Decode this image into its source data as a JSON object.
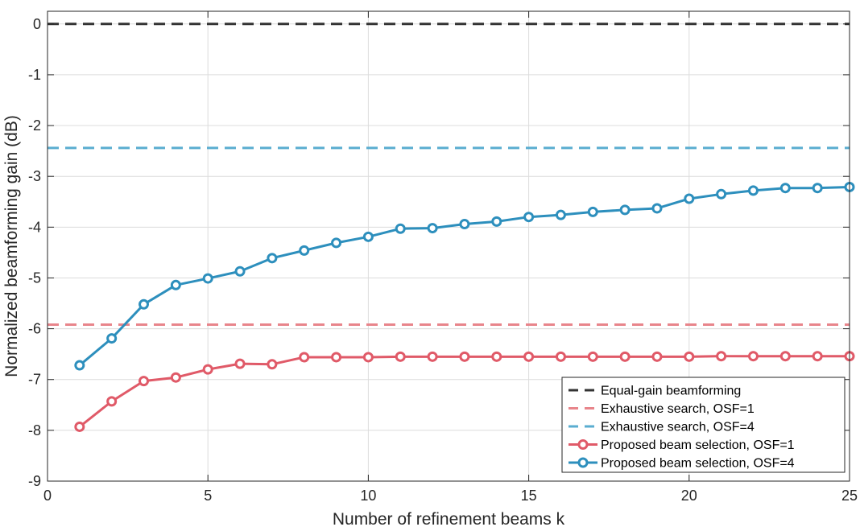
{
  "chart_data": {
    "type": "line",
    "xlabel": "Number of refinement beams k",
    "ylabel": "Normalized beamforming gain (dB)",
    "xlim": [
      0,
      25
    ],
    "ylim": [
      -9,
      0.25
    ],
    "xticks": [
      0,
      5,
      10,
      15,
      20,
      25
    ],
    "yticks": [
      0,
      -1,
      -2,
      -3,
      -4,
      -5,
      -6,
      -7,
      -8,
      -9
    ],
    "grid": true,
    "legend_position": "bottom-right",
    "reference_lines": [
      {
        "name": "Equal-gain beamforming",
        "y": 0,
        "color": "#333333",
        "style": "dashed"
      },
      {
        "name": "Exhaustive search, OSF=1",
        "y": -5.92,
        "color": "#e8858b",
        "style": "dashed"
      },
      {
        "name": "Exhaustive search, OSF=4",
        "y": -2.44,
        "color": "#5aadd0",
        "style": "dashed"
      }
    ],
    "series": [
      {
        "name": "Proposed beam selection, OSF=1",
        "color": "#e05a68",
        "marker": "circle",
        "x": [
          1,
          2,
          3,
          4,
          5,
          6,
          7,
          8,
          9,
          10,
          11,
          12,
          13,
          14,
          15,
          16,
          17,
          18,
          19,
          20,
          21,
          22,
          23,
          24,
          25
        ],
        "y": [
          -7.93,
          -7.43,
          -7.03,
          -6.96,
          -6.8,
          -6.69,
          -6.7,
          -6.56,
          -6.56,
          -6.56,
          -6.55,
          -6.55,
          -6.55,
          -6.55,
          -6.55,
          -6.55,
          -6.55,
          -6.55,
          -6.55,
          -6.55,
          -6.54,
          -6.54,
          -6.54,
          -6.54,
          -6.54
        ]
      },
      {
        "name": "Proposed beam selection, OSF=4",
        "color": "#2d8fbd",
        "marker": "circle",
        "x": [
          1,
          2,
          3,
          4,
          5,
          6,
          7,
          8,
          9,
          10,
          11,
          12,
          13,
          14,
          15,
          16,
          17,
          18,
          19,
          20,
          21,
          22,
          23,
          24,
          25
        ],
        "y": [
          -6.72,
          -6.19,
          -5.52,
          -5.14,
          -5.01,
          -4.87,
          -4.61,
          -4.46,
          -4.31,
          -4.19,
          -4.03,
          -4.02,
          -3.94,
          -3.89,
          -3.8,
          -3.76,
          -3.7,
          -3.66,
          -3.63,
          -3.44,
          -3.35,
          -3.28,
          -3.23,
          -3.23,
          -3.21
        ]
      }
    ]
  }
}
